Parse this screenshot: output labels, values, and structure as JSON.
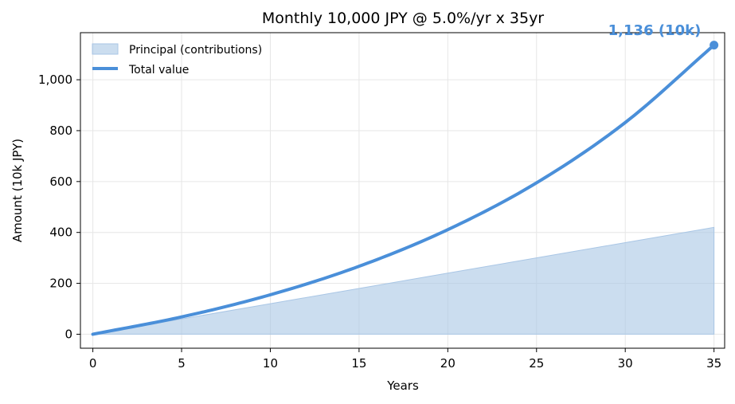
{
  "colors": {
    "total_line": "#4a8fd9",
    "principal_fill": "#a9c6e5",
    "grid": "#e6e6e6",
    "axis": "#000000",
    "annotation": "#4a8fd9"
  },
  "chart_data": {
    "type": "area",
    "title": "Monthly 10,000 JPY @ 5.0%/yr x 35yr",
    "xlabel": "Years",
    "ylabel": "Amount (10k JPY)",
    "xlim": [
      -0.7,
      35.6
    ],
    "ylim": [
      -55,
      1185
    ],
    "grid": true,
    "legend_position": "top-left",
    "x_ticks": [
      0,
      5,
      10,
      15,
      20,
      25,
      30,
      35
    ],
    "x_tick_labels": [
      "0",
      "5",
      "10",
      "15",
      "20",
      "25",
      "30",
      "35"
    ],
    "y_ticks": [
      0,
      200,
      400,
      600,
      800,
      1000
    ],
    "y_tick_labels": [
      "0",
      "200",
      "400",
      "600",
      "800",
      "1,000"
    ],
    "x": [
      0,
      5,
      10,
      15,
      20,
      25,
      30,
      35
    ],
    "series": [
      {
        "name": "Principal (contributions)",
        "kind": "area",
        "values": [
          0,
          60,
          120,
          180,
          240,
          300,
          360,
          420
        ]
      },
      {
        "name": "Total value",
        "kind": "line",
        "values": [
          0,
          68,
          155,
          267,
          411,
          595,
          832,
          1136
        ]
      }
    ],
    "annotation": {
      "text": "1,136 (10k)",
      "x": 35,
      "y": 1136
    }
  }
}
